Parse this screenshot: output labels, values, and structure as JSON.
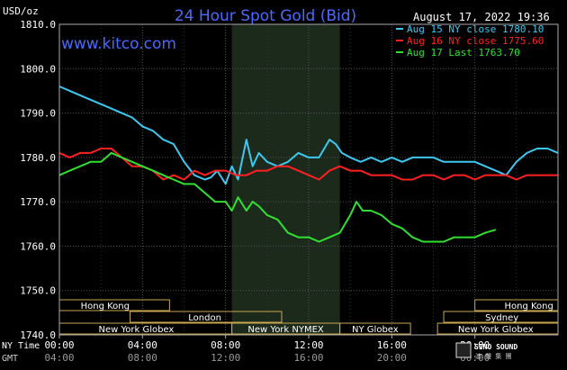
{
  "chart_data": {
    "type": "line",
    "title": "24 Hour Spot Gold (Bid)",
    "unit_label": "USD/oz",
    "timestamp": "August 17, 2022 19:36",
    "watermark": "www.kitco.com",
    "brand": "SINO SOUND",
    "brand_sub": "澳 聲 集 團",
    "y_ticks": [
      "1810.0",
      "1800.0",
      "1790.0",
      "1780.0",
      "1770.0",
      "1760.0",
      "1750.0",
      "1740.0"
    ],
    "ylim": [
      1740,
      1810
    ],
    "xlim": [
      0,
      24
    ],
    "row_label_ny": "NY Time",
    "row_label_gmt": "GMT",
    "x_ticks_ny": [
      "00:00",
      "04:00",
      "08:00",
      "12:00",
      "16:00",
      "20:00"
    ],
    "x_ticks_gmt": [
      "04:00",
      "08:00",
      "12:00",
      "16:00",
      "20:00",
      "00:00"
    ],
    "x_ticks_hours": [
      0,
      4,
      8,
      12,
      16,
      20
    ],
    "shade_hours": [
      8.3,
      13.5
    ],
    "legend": [
      {
        "label": "Aug 15 NY close 1780.10",
        "color": "#3ec8f0"
      },
      {
        "label": "Aug 16 NY close 1775.60",
        "color": "#ff2020"
      },
      {
        "label": "Aug 17 Last 1763.70",
        "color": "#30e030"
      }
    ],
    "sessions": [
      {
        "name": "Hong Kong",
        "row": 0,
        "start": 0,
        "end": 5.3,
        "label_at": 2.2
      },
      {
        "name": "Hong Kong",
        "row": 0,
        "start": 20.0,
        "end": 24,
        "label_at": 22.6
      },
      {
        "name": "London",
        "row": 1,
        "start": 3.4,
        "end": 10.7,
        "label_at": 7.0
      },
      {
        "name": "Sydney",
        "row": 1,
        "start": 18.5,
        "end": 24,
        "label_at": 21.3
      },
      {
        "name": "New York Globex",
        "row": 2,
        "start": 0,
        "end": 8.3,
        "label_at": 3.7
      },
      {
        "name": "New York NYMEX",
        "row": 2,
        "start": 8.3,
        "end": 13.5,
        "label_at": 10.9
      },
      {
        "name": "NY Globex",
        "row": 2,
        "start": 13.5,
        "end": 16.9,
        "label_at": 15.2
      },
      {
        "name": "New York Globex",
        "row": 2,
        "start": 18.2,
        "end": 24,
        "label_at": 21.0
      }
    ],
    "series": [
      {
        "name": "Aug 15 NY close 1780.10",
        "color": "#3ec8f0",
        "x": [
          0,
          0.5,
          1,
          1.5,
          2,
          2.5,
          3,
          3.5,
          4,
          4.5,
          5,
          5.5,
          6,
          6.5,
          7,
          7.3,
          7.6,
          8,
          8.3,
          8.6,
          9,
          9.3,
          9.6,
          10,
          10.5,
          11,
          11.5,
          12,
          12.5,
          13,
          13.3,
          13.6,
          14,
          14.5,
          15,
          15.5,
          16,
          16.5,
          17,
          17.5,
          18,
          18.5,
          19,
          19.5,
          20,
          20.5,
          21,
          21.5,
          22,
          22.5,
          23,
          23.5,
          24
        ],
        "y": [
          1796,
          1795,
          1794,
          1793,
          1792,
          1791,
          1790,
          1789,
          1787,
          1786,
          1784,
          1783,
          1779,
          1776,
          1775,
          1775.5,
          1777,
          1774,
          1778,
          1775,
          1784,
          1778,
          1781,
          1779,
          1778,
          1779,
          1781,
          1780,
          1780,
          1784,
          1783,
          1781,
          1780,
          1779,
          1780,
          1779,
          1780,
          1779,
          1780,
          1780,
          1780,
          1779,
          1779,
          1779,
          1779,
          1778,
          1777,
          1776,
          1779,
          1781,
          1782,
          1782,
          1781
        ]
      },
      {
        "name": "Aug 16 NY close 1775.60",
        "color": "#ff2020",
        "x": [
          0,
          0.5,
          1,
          1.5,
          2,
          2.5,
          3,
          3.5,
          4,
          4.5,
          5,
          5.5,
          6,
          6.5,
          7,
          7.5,
          8,
          8.5,
          9,
          9.5,
          10,
          10.5,
          11,
          11.5,
          12,
          12.5,
          13,
          13.5,
          14,
          14.5,
          15,
          15.5,
          16,
          16.5,
          17,
          17.5,
          18,
          18.5,
          19,
          19.5,
          20,
          20.5,
          21,
          21.5,
          22,
          22.5,
          23,
          23.5,
          24
        ],
        "y": [
          1781,
          1780,
          1781,
          1781,
          1782,
          1782,
          1780,
          1778,
          1778,
          1777,
          1775,
          1776,
          1775,
          1777,
          1776,
          1777,
          1777,
          1776,
          1776,
          1777,
          1777,
          1778,
          1778,
          1777,
          1776,
          1775,
          1777,
          1778,
          1777,
          1777,
          1776,
          1776,
          1776,
          1775,
          1775,
          1776,
          1776,
          1775,
          1776,
          1776,
          1775,
          1776,
          1776,
          1776,
          1775,
          1776,
          1776,
          1776,
          1776
        ]
      },
      {
        "name": "Aug 17 Last 1763.70",
        "color": "#30e030",
        "x": [
          0,
          0.5,
          1,
          1.5,
          2,
          2.5,
          3,
          3.5,
          4,
          4.5,
          5,
          5.5,
          6,
          6.5,
          7,
          7.5,
          8,
          8.3,
          8.6,
          9,
          9.3,
          9.6,
          10,
          10.5,
          11,
          11.5,
          12,
          12.5,
          13,
          13.5,
          14,
          14.3,
          14.6,
          15,
          15.5,
          16,
          16.5,
          17,
          17.5,
          18,
          18.5,
          19,
          19.5,
          20,
          20.5,
          21
        ],
        "y": [
          1776,
          1777,
          1778,
          1779,
          1779,
          1781,
          1780,
          1779,
          1778,
          1777,
          1776,
          1775,
          1774,
          1774,
          1772,
          1770,
          1770,
          1768,
          1771,
          1768,
          1770,
          1769,
          1767,
          1766,
          1763,
          1762,
          1762,
          1761,
          1762,
          1763,
          1767,
          1770,
          1768,
          1768,
          1767,
          1765,
          1764,
          1762,
          1761,
          1761,
          1761,
          1762,
          1762,
          1762,
          1763,
          1763.7
        ]
      }
    ]
  }
}
